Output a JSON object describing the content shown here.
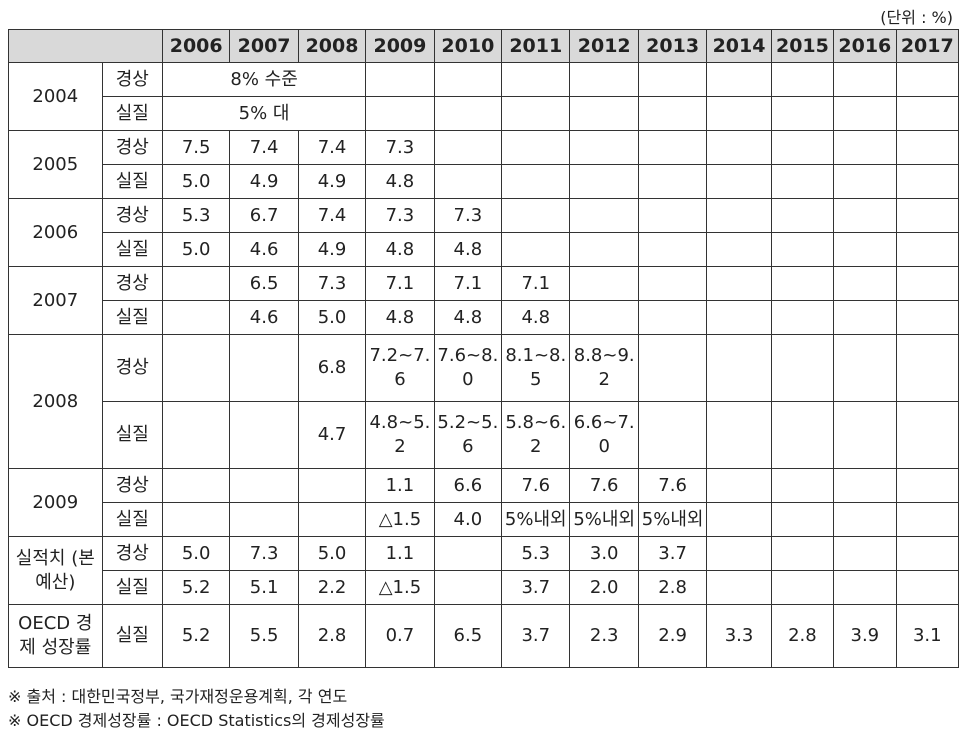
{
  "unit_label": "(단위 : %)",
  "years": [
    "2006",
    "2007",
    "2008",
    "2009",
    "2010",
    "2011",
    "2012",
    "2013",
    "2014",
    "2015",
    "2016",
    "2017"
  ],
  "rows": {
    "r2004": {
      "label": "2004",
      "nominal": {
        "type": "경상",
        "span_value": "8% 수준"
      },
      "real": {
        "type": "실질",
        "span_value": "5% 대"
      }
    },
    "r2005": {
      "label": "2005",
      "nominal": {
        "type": "경상",
        "v": [
          "7.5",
          "7.4",
          "7.4",
          "7.3",
          "",
          "",
          "",
          "",
          "",
          "",
          "",
          ""
        ]
      },
      "real": {
        "type": "실질",
        "v": [
          "5.0",
          "4.9",
          "4.9",
          "4.8",
          "",
          "",
          "",
          "",
          "",
          "",
          "",
          ""
        ]
      }
    },
    "r2006": {
      "label": "2006",
      "nominal": {
        "type": "경상",
        "v": [
          "5.3",
          "6.7",
          "7.4",
          "7.3",
          "7.3",
          "",
          "",
          "",
          "",
          "",
          "",
          ""
        ]
      },
      "real": {
        "type": "실질",
        "v": [
          "5.0",
          "4.6",
          "4.9",
          "4.8",
          "4.8",
          "",
          "",
          "",
          "",
          "",
          "",
          ""
        ]
      }
    },
    "r2007": {
      "label": "2007",
      "nominal": {
        "type": "경상",
        "v": [
          "",
          "6.5",
          "7.3",
          "7.1",
          "7.1",
          "7.1",
          "",
          "",
          "",
          "",
          "",
          ""
        ]
      },
      "real": {
        "type": "실질",
        "v": [
          "",
          "4.6",
          "5.0",
          "4.8",
          "4.8",
          "4.8",
          "",
          "",
          "",
          "",
          "",
          ""
        ]
      }
    },
    "r2008": {
      "label": "2008",
      "nominal": {
        "type": "경상",
        "v": [
          "",
          "",
          "6.8",
          "7.2~7.6",
          "7.6~8.0",
          "8.1~8.5",
          "8.8~9.2",
          "",
          "",
          "",
          "",
          ""
        ]
      },
      "real": {
        "type": "실질",
        "v": [
          "",
          "",
          "4.7",
          "4.8~5.2",
          "5.2~5.6",
          "5.8~6.2",
          "6.6~7.0",
          "",
          "",
          "",
          "",
          ""
        ]
      }
    },
    "r2009": {
      "label": "2009",
      "nominal": {
        "type": "경상",
        "v": [
          "",
          "",
          "",
          "1.1",
          "6.6",
          "7.6",
          "7.6",
          "7.6",
          "",
          "",
          "",
          ""
        ]
      },
      "real": {
        "type": "실질",
        "v": [
          "",
          "",
          "",
          "△1.5",
          "4.0",
          "5%내외",
          "5%내외",
          "5%내외",
          "",
          "",
          "",
          ""
        ]
      }
    },
    "actual": {
      "label": "실적치 (본 예산)",
      "nominal": {
        "type": "경상",
        "v": [
          "5.0",
          "7.3",
          "5.0",
          "1.1",
          "",
          "5.3",
          "3.0",
          "3.7",
          "",
          "",
          "",
          ""
        ]
      },
      "real": {
        "type": "실질",
        "v": [
          "5.2",
          "5.1",
          "2.2",
          "△1.5",
          "",
          "3.7",
          "2.0",
          "2.8",
          "",
          "",
          "",
          ""
        ]
      }
    },
    "oecd": {
      "label": "OECD 경제 성장률",
      "real": {
        "type": "실질",
        "v": [
          "5.2",
          "5.5",
          "2.8",
          "0.7",
          "6.5",
          "3.7",
          "2.3",
          "2.9",
          "3.3",
          "2.8",
          "3.9",
          "3.1"
        ]
      }
    }
  },
  "notes": [
    "※ 출처 : 대한민국정부, 국가재정운용계획, 각 연도",
    "※ OECD 경제성장률 : OECD Statistics의 경제성장률"
  ]
}
